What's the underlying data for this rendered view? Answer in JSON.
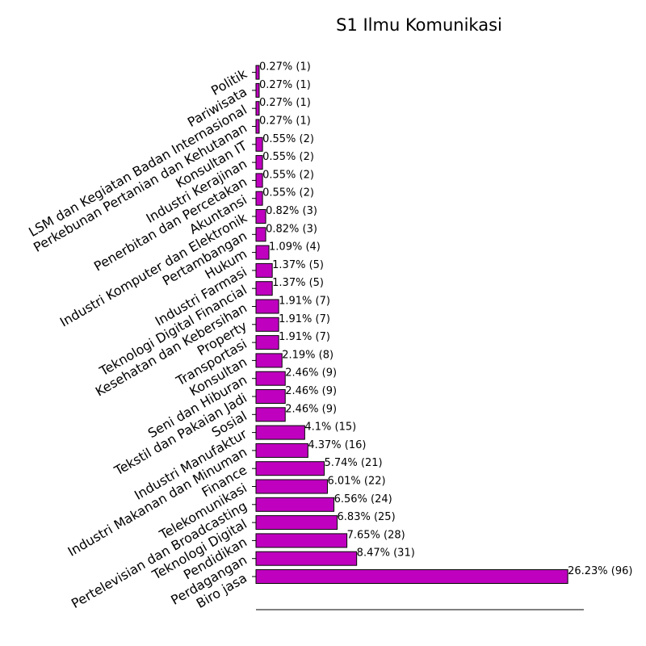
{
  "chart_data": {
    "type": "bar",
    "orientation": "horizontal",
    "title": "S1 Ilmu Komunikasi",
    "xlabel": "",
    "ylabel": "",
    "xlim": [
      0,
      105
    ],
    "grid": false,
    "legend": "none",
    "bar_color": "#bf00bf",
    "bar_edge_color": "#000000",
    "categories": [
      "Biro jasa",
      "Perdagangan",
      "Pendidikan",
      "Teknologi Digital",
      "Pertelevisian dan Broadcasting",
      "Telekomunikasi",
      "Finance",
      "Industri Makanan dan Minuman",
      "Industri Manufaktur",
      "Sosial",
      "Tekstil dan Pakaian Jadi",
      "Seni dan Hiburan",
      "Konsultan",
      "Transportasi",
      "Property",
      "Kesehatan dan Kebersihan",
      "Teknologi Digital Financial",
      "Industri Farmasi",
      "Hukum",
      "Pertambangan",
      "Industri Komputer dan Elektronik",
      "Akuntansi",
      "Penerbitan dan Percetakan",
      "Industri Kerajinan",
      "Konsultan IT",
      "Perkebunan Pertanian dan Kehutanan",
      "LSM dan Kegiatan Badan Internasional",
      "Pariwisata",
      "Politik"
    ],
    "values": [
      26.23,
      8.47,
      7.65,
      6.83,
      6.56,
      6.01,
      5.74,
      4.37,
      4.1,
      2.46,
      2.46,
      2.46,
      2.19,
      1.91,
      1.91,
      1.91,
      1.37,
      1.37,
      1.09,
      0.82,
      0.82,
      0.55,
      0.55,
      0.55,
      0.55,
      0.27,
      0.27,
      0.27,
      0.27
    ],
    "data_labels": [
      "26.23% (96)",
      "8.47% (31)",
      "7.65% (28)",
      "6.83% (25)",
      "6.56% (24)",
      "6.01% (22)",
      "5.74% (21)",
      "4.37% (16)",
      "4.1% (15)",
      "2.46% (9)",
      "2.46% (9)",
      "2.46% (9)",
      "2.19% (8)",
      "1.91% (7)",
      "1.91% (7)",
      "1.91% (7)",
      "1.37% (5)",
      "1.37% (5)",
      "1.09% (4)",
      "0.82% (3)",
      "0.82% (3)",
      "0.55% (2)",
      "0.55% (2)",
      "0.55% (2)",
      "0.55% (2)",
      "0.27% (1)",
      "0.27% (1)",
      "0.27% (1)",
      "0.27% (1)"
    ]
  }
}
